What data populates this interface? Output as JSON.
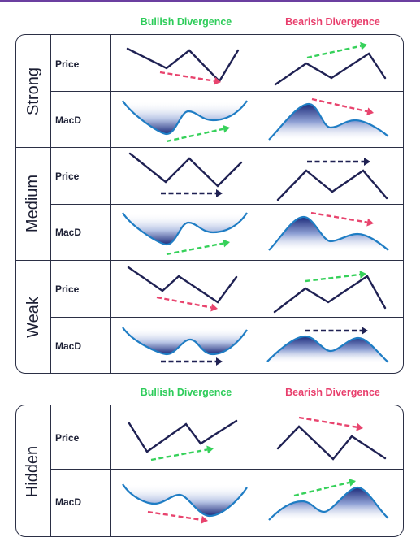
{
  "headers": {
    "bullish": "Bullish Divergence",
    "bearish": "Bearish Divergence"
  },
  "row_labels": {
    "price": "Price",
    "macd": "MacD"
  },
  "groups": {
    "strong": "Strong",
    "medium": "Medium",
    "weak": "Weak",
    "hidden": "Hidden"
  },
  "colors": {
    "line": "#1f2153",
    "curve": "#1f7dc4",
    "green_arrow": "#36d15a",
    "red_arrow": "#e8446e",
    "navy_arrow": "#1f2153",
    "border": "#2b2f45",
    "bullish_text": "#2ecc5a",
    "bearish_text": "#e83e6c"
  }
}
